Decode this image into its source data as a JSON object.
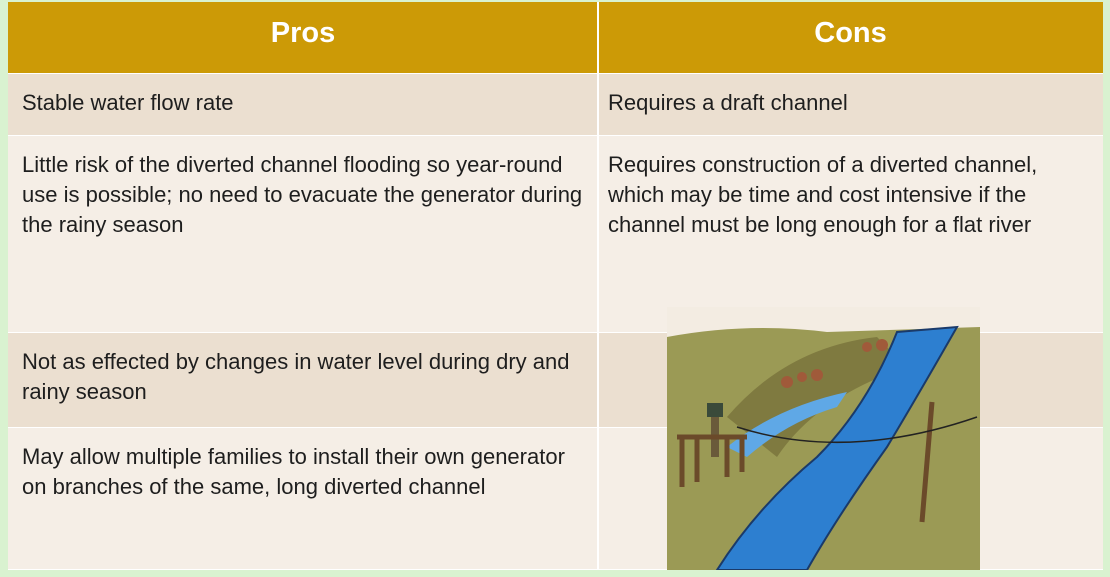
{
  "table": {
    "header": [
      "Pros",
      "Cons"
    ],
    "rows": [
      [
        "Stable water flow rate",
        "Requires a draft channel"
      ],
      [
        "Little risk of the diverted channel flooding so year-round use is possible; no need to evacuate the generator during the rainy season",
        "Requires construction of a diverted channel, which may be time and cost intensive if the channel must be long enough for a flat river"
      ],
      [
        "Not as effected by changes in water level during dry and rainy season"
      ],
      [
        "May allow multiple families to install their own generator on branches of the same, long diverted channel"
      ]
    ]
  }
}
